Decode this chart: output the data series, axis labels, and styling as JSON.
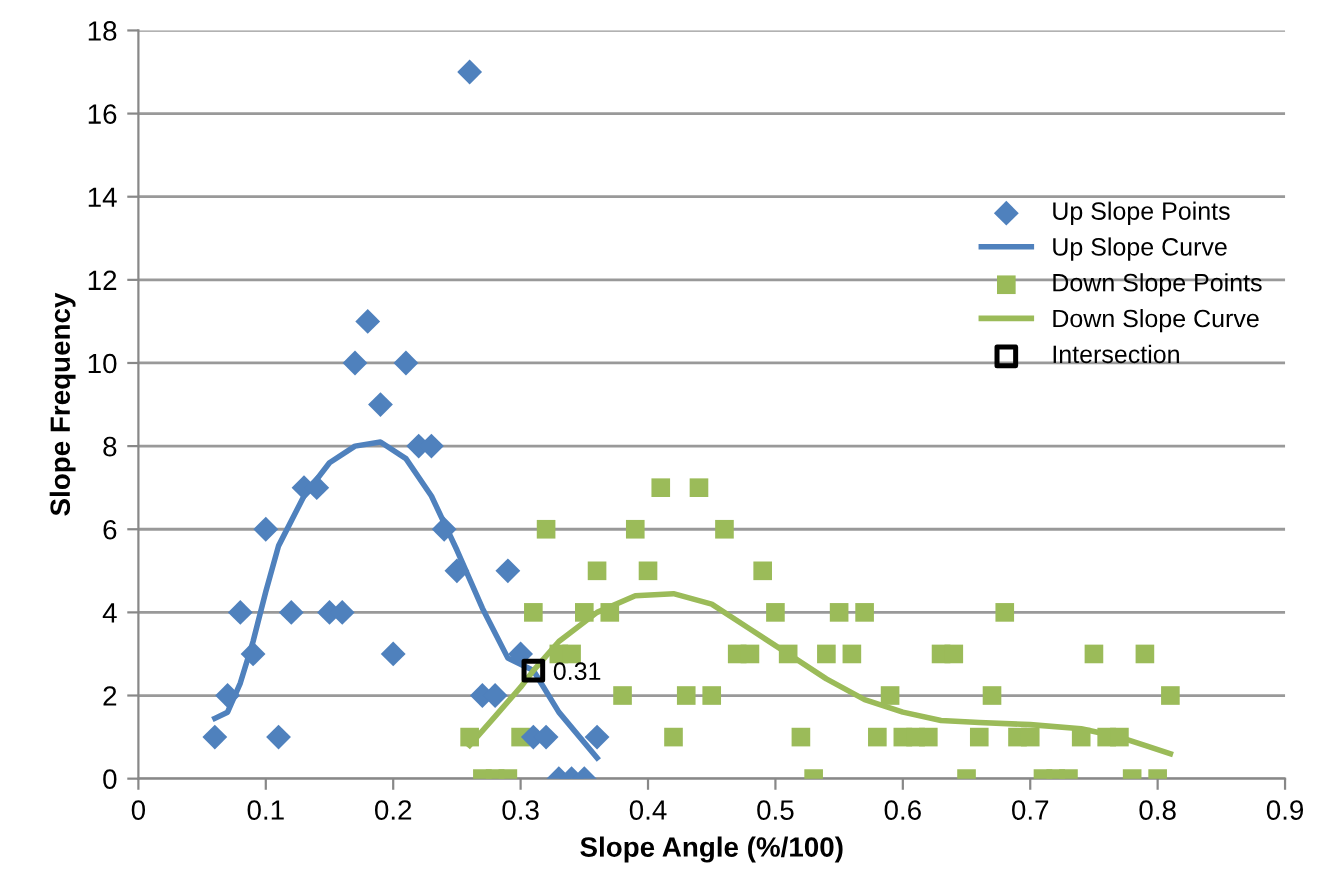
{
  "chart_data": {
    "type": "scatter",
    "xlabel": "Slope Angle (%/100)",
    "ylabel": "Slope Frequency",
    "xlim": [
      0,
      0.9
    ],
    "xticks": [
      0,
      0.1,
      0.2,
      0.3,
      0.4,
      0.5,
      0.6,
      0.7,
      0.8,
      0.9
    ],
    "ylim": [
      0,
      18
    ],
    "yticks": [
      0,
      2,
      4,
      6,
      8,
      10,
      12,
      14,
      16,
      18
    ],
    "grid": "y",
    "legend": "right",
    "annotations": [
      {
        "text": "0.31",
        "x": 0.31,
        "y": 2.6
      }
    ],
    "series": [
      {
        "name": "Up Slope Points",
        "marker": "diamond",
        "color": "#4f81bd",
        "x": [
          0.06,
          0.07,
          0.08,
          0.09,
          0.1,
          0.11,
          0.12,
          0.13,
          0.14,
          0.15,
          0.16,
          0.17,
          0.18,
          0.19,
          0.2,
          0.21,
          0.22,
          0.23,
          0.24,
          0.25,
          0.26,
          0.27,
          0.28,
          0.29,
          0.3,
          0.31,
          0.32,
          0.33,
          0.34,
          0.35,
          0.36
        ],
        "values": [
          1,
          2,
          4,
          3,
          6,
          1,
          4,
          7,
          7,
          4,
          4,
          10,
          11,
          9,
          3,
          10,
          8,
          8,
          6,
          5,
          17,
          2,
          2,
          5,
          3,
          1,
          1,
          0,
          0,
          0,
          1
        ]
      },
      {
        "name": "Up Slope Curve",
        "type": "line",
        "marker": "none",
        "color": "#4f81bd",
        "x": [
          0.06,
          0.07,
          0.08,
          0.09,
          0.1,
          0.11,
          0.13,
          0.15,
          0.17,
          0.19,
          0.21,
          0.23,
          0.25,
          0.27,
          0.29,
          0.31,
          0.33,
          0.36
        ],
        "values": [
          1.45,
          1.6,
          2.3,
          3.3,
          4.5,
          5.6,
          6.8,
          7.6,
          8.0,
          8.1,
          7.7,
          6.8,
          5.5,
          4.1,
          2.9,
          2.6,
          1.6,
          0.5
        ]
      },
      {
        "name": "Down Slope Points",
        "marker": "square",
        "color": "#9bbb59",
        "x": [
          0.26,
          0.27,
          0.28,
          0.29,
          0.3,
          0.31,
          0.32,
          0.33,
          0.34,
          0.35,
          0.36,
          0.37,
          0.38,
          0.39,
          0.4,
          0.41,
          0.42,
          0.43,
          0.44,
          0.45,
          0.46,
          0.47,
          0.48,
          0.49,
          0.5,
          0.51,
          0.52,
          0.53,
          0.54,
          0.55,
          0.56,
          0.57,
          0.58,
          0.59,
          0.6,
          0.61,
          0.62,
          0.63,
          0.64,
          0.65,
          0.66,
          0.67,
          0.68,
          0.69,
          0.7,
          0.71,
          0.72,
          0.73,
          0.74,
          0.75,
          0.76,
          0.77,
          0.78,
          0.79,
          0.8,
          0.81
        ],
        "values": [
          1,
          0,
          0,
          0,
          1,
          4,
          6,
          3,
          3,
          4,
          5,
          4,
          2,
          6,
          5,
          7,
          1,
          2,
          7,
          2,
          6,
          3,
          3,
          5,
          4,
          3,
          1,
          0,
          3,
          4,
          3,
          4,
          1,
          2,
          1,
          1,
          1,
          3,
          3,
          0,
          1,
          2,
          4,
          1,
          1,
          0,
          0,
          0,
          1,
          3,
          1,
          1,
          0,
          3,
          0,
          2
        ]
      },
      {
        "name": "Down Slope Curve",
        "type": "line",
        "marker": "none",
        "color": "#9bbb59",
        "x": [
          0.26,
          0.28,
          0.3,
          0.31,
          0.33,
          0.36,
          0.39,
          0.42,
          0.45,
          0.48,
          0.51,
          0.54,
          0.57,
          0.6,
          0.63,
          0.66,
          0.7,
          0.74,
          0.77,
          0.79,
          0.81
        ],
        "values": [
          0.8,
          1.5,
          2.2,
          2.6,
          3.3,
          4.0,
          4.4,
          4.45,
          4.2,
          3.6,
          3.0,
          2.4,
          1.9,
          1.6,
          1.4,
          1.35,
          1.3,
          1.2,
          1.0,
          0.8,
          0.6
        ]
      },
      {
        "name": "Intersection",
        "marker": "square",
        "color": "#000000",
        "x": [
          0.31
        ],
        "values": [
          2.6
        ]
      }
    ]
  }
}
